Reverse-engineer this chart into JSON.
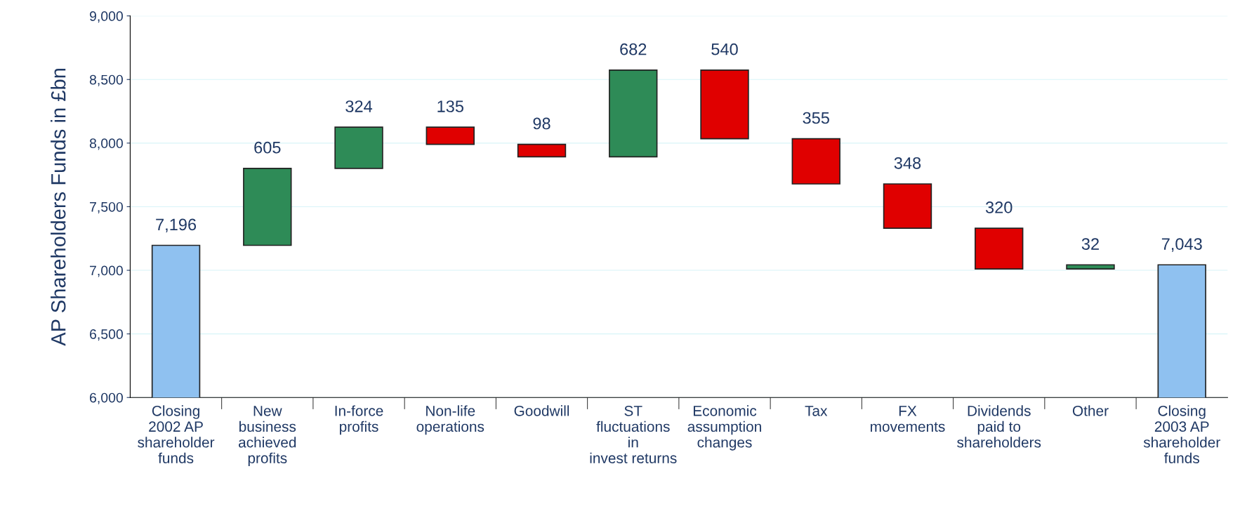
{
  "chart_data": {
    "type": "bar",
    "ylabel": "AP Shareholders Funds in £bn",
    "categories": [
      "Closing\n2002 AP\nshareholder\nfunds",
      "New\nbusiness\nachieved\nprofits",
      "In-force\nprofits",
      "Non-life\noperations",
      "Goodwill",
      "ST\nfluctuations\nin\ninvest returns",
      "Economic\nassumption\nchanges",
      "Tax",
      "FX\nmovements",
      "Dividends\npaid to\nshareholders",
      "Other",
      "Closing\n2003 AP\nshareholder\nfunds"
    ],
    "values": [
      7196,
      605,
      324,
      -135,
      -98,
      682,
      -540,
      -355,
      -348,
      -320,
      32,
      7043
    ],
    "base": [
      null,
      7196,
      7801,
      8125,
      7990,
      7892,
      8574,
      8034,
      7679,
      7331,
      7011,
      null
    ],
    "value_labels": [
      "7,196",
      "605",
      "324",
      "135",
      "98",
      "682",
      "540",
      "355",
      "348",
      "320",
      "32",
      "7,043"
    ],
    "colors": [
      "#8fc1f0",
      "#2e8b57",
      "#2e8b57",
      "#e00000",
      "#e00000",
      "#2e8b57",
      "#e00000",
      "#e00000",
      "#e00000",
      "#e00000",
      "#2e8b57",
      "#8fc1f0"
    ],
    "ylim": [
      6000,
      9000
    ],
    "yticks": [
      {
        "value": 6000,
        "label": "6,000"
      },
      {
        "value": 6500,
        "label": "6,500"
      },
      {
        "value": 7000,
        "label": "7,000"
      },
      {
        "value": 7500,
        "label": "7,500"
      },
      {
        "value": 8000,
        "label": "8,000"
      },
      {
        "value": 8500,
        "label": "8,500"
      },
      {
        "value": 9000,
        "label": "9,000"
      }
    ],
    "grid": "y",
    "legend": false
  }
}
